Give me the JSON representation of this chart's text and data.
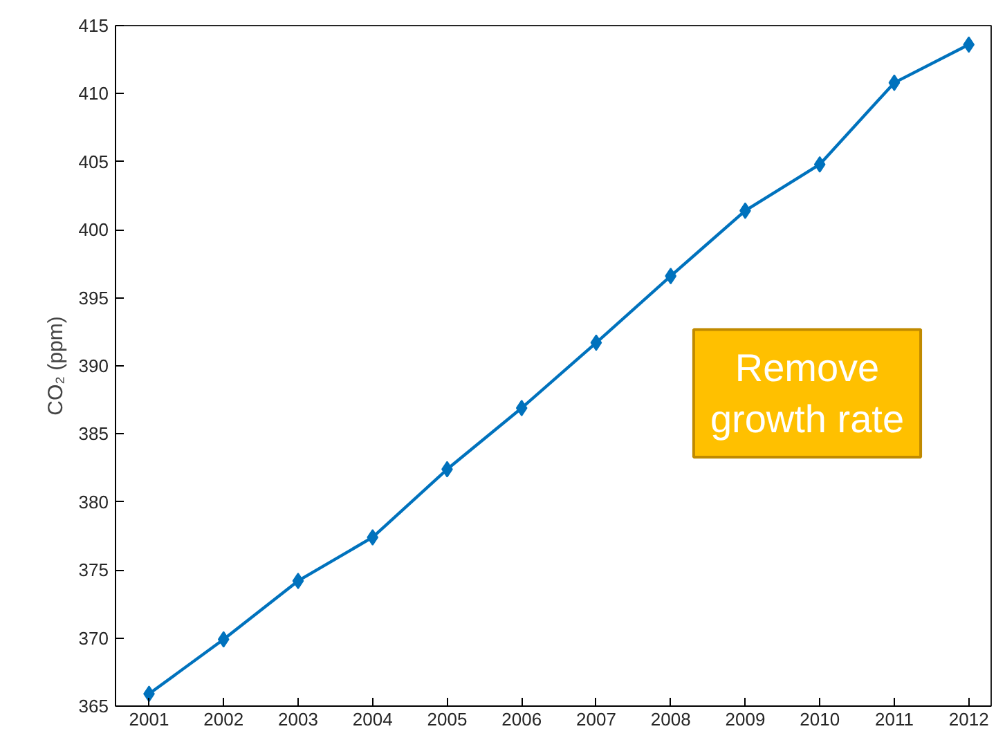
{
  "chart_data": {
    "type": "line",
    "ylabel": "CO₂ (ppm)",
    "x": [
      2001,
      2002,
      2003,
      2004,
      2005,
      2006,
      2007,
      2008,
      2009,
      2010,
      2011,
      2012
    ],
    "series": [
      {
        "color": "#0072bd",
        "values": [
          365.9,
          369.9,
          374.2,
          377.4,
          382.4,
          386.9,
          391.7,
          396.6,
          401.4,
          404.8,
          410.8,
          413.6
        ]
      }
    ],
    "xlim": [
      2000.55,
      2012.3
    ],
    "xticks": [
      2001,
      2002,
      2003,
      2004,
      2005,
      2006,
      2007,
      2008,
      2009,
      2010,
      2011,
      2012
    ],
    "ylim": [
      365,
      415
    ],
    "yticks": [
      365,
      370,
      375,
      380,
      385,
      390,
      395,
      400,
      405,
      410,
      415
    ],
    "marker": "diamond",
    "line_style": "solid",
    "grid": false,
    "annotations": [
      "Remove\ngrowth rate"
    ]
  }
}
